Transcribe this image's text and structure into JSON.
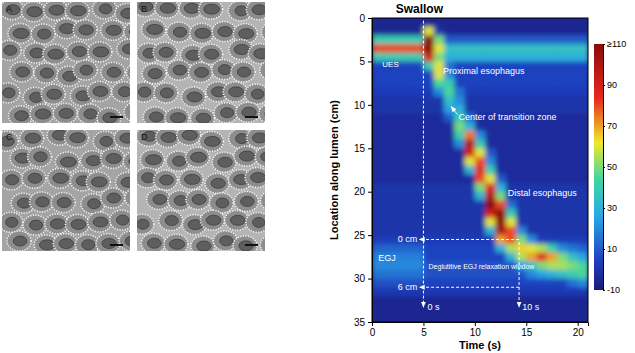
{
  "chart_data": {
    "type": "heatmap",
    "title": "Swallow",
    "x_label": "Time (s)",
    "y_label": "Location along lumen (cm)",
    "xlim": [
      0,
      21
    ],
    "xticks": [
      0,
      5,
      10,
      15,
      20
    ],
    "ylim": [
      0,
      35
    ],
    "yticks": [
      0,
      5,
      10,
      15,
      20,
      25,
      30,
      35
    ],
    "x_bins": [
      0,
      1,
      2,
      3,
      4,
      5,
      6,
      7,
      8,
      9,
      10,
      11,
      12,
      13,
      14,
      15,
      16,
      17,
      18,
      19,
      20,
      21
    ],
    "y_bins": [
      0,
      1,
      2,
      3,
      4,
      5,
      6,
      7,
      8,
      9,
      10,
      11,
      12,
      13,
      14,
      15,
      16,
      17,
      18,
      19,
      20,
      21,
      22,
      23,
      24,
      25,
      26,
      27,
      28,
      29,
      30,
      31,
      32,
      33,
      34,
      35
    ],
    "cells": [
      [
        -5,
        -5,
        -5,
        -5,
        -5,
        -5,
        -5,
        -5,
        -5,
        -5,
        -5,
        -5,
        -5,
        -5,
        -5,
        -5,
        -5,
        -5,
        -5,
        -5,
        -5
      ],
      [
        -5,
        -5,
        -5,
        -5,
        -5,
        60,
        0,
        -5,
        -5,
        -5,
        -5,
        -5,
        -5,
        -5,
        -5,
        -5,
        -5,
        -5,
        -5,
        -5,
        -5
      ],
      [
        40,
        40,
        40,
        40,
        40,
        120,
        50,
        10,
        10,
        10,
        10,
        10,
        10,
        10,
        10,
        10,
        10,
        10,
        10,
        10,
        10
      ],
      [
        80,
        80,
        80,
        80,
        80,
        120,
        60,
        35,
        35,
        35,
        35,
        35,
        35,
        35,
        35,
        35,
        35,
        35,
        35,
        35,
        35
      ],
      [
        40,
        40,
        40,
        40,
        40,
        90,
        50,
        30,
        30,
        30,
        30,
        30,
        30,
        30,
        30,
        30,
        30,
        30,
        30,
        30,
        30
      ],
      [
        5,
        5,
        5,
        5,
        5,
        40,
        60,
        15,
        5,
        5,
        5,
        5,
        5,
        5,
        5,
        5,
        5,
        5,
        5,
        5,
        5
      ],
      [
        5,
        5,
        5,
        5,
        5,
        5,
        60,
        20,
        5,
        5,
        5,
        5,
        5,
        5,
        5,
        5,
        5,
        5,
        5,
        5,
        5
      ],
      [
        5,
        5,
        5,
        5,
        5,
        5,
        45,
        40,
        5,
        5,
        5,
        5,
        5,
        5,
        5,
        5,
        5,
        5,
        5,
        5,
        5
      ],
      [
        3,
        3,
        3,
        3,
        3,
        3,
        20,
        45,
        15,
        3,
        3,
        3,
        3,
        3,
        3,
        3,
        3,
        3,
        3,
        3,
        3
      ],
      [
        0,
        0,
        0,
        0,
        0,
        0,
        0,
        35,
        20,
        0,
        0,
        0,
        0,
        0,
        0,
        0,
        0,
        0,
        0,
        0,
        0
      ],
      [
        0,
        0,
        0,
        0,
        0,
        0,
        0,
        25,
        30,
        0,
        0,
        0,
        0,
        0,
        0,
        0,
        0,
        0,
        0,
        0,
        0
      ],
      [
        -3,
        -3,
        -3,
        -3,
        -3,
        -3,
        -3,
        10,
        40,
        15,
        -3,
        -3,
        -3,
        -3,
        -3,
        -3,
        -3,
        -3,
        -3,
        -3,
        -3
      ],
      [
        -3,
        -3,
        -3,
        -3,
        -3,
        -3,
        -3,
        -3,
        50,
        30,
        -3,
        -3,
        -3,
        -3,
        -3,
        -3,
        -3,
        -3,
        -3,
        -3,
        -3
      ],
      [
        -3,
        -3,
        -3,
        -3,
        -3,
        -3,
        -3,
        -3,
        40,
        75,
        20,
        -3,
        -3,
        -3,
        -3,
        -3,
        -3,
        -3,
        -3,
        -3,
        -3
      ],
      [
        -3,
        -3,
        -3,
        -3,
        -3,
        -3,
        -3,
        -3,
        20,
        100,
        40,
        -3,
        -3,
        -3,
        -3,
        -3,
        -3,
        -3,
        -3,
        -3,
        -3
      ],
      [
        -3,
        -3,
        -3,
        -3,
        -3,
        -3,
        -3,
        -3,
        -3,
        90,
        60,
        10,
        -3,
        -3,
        -3,
        -3,
        -3,
        -3,
        -3,
        -3,
        -3
      ],
      [
        -3,
        -3,
        -3,
        -3,
        -3,
        -3,
        -3,
        -3,
        -3,
        60,
        80,
        20,
        -3,
        -3,
        -3,
        -3,
        -3,
        -3,
        -3,
        -3,
        -3
      ],
      [
        -3,
        -3,
        -3,
        -3,
        -3,
        -3,
        -3,
        -3,
        -3,
        30,
        85,
        40,
        -3,
        -3,
        -3,
        -3,
        -3,
        -3,
        -3,
        -3,
        -3
      ],
      [
        -3,
        -3,
        -3,
        -3,
        -3,
        -3,
        -3,
        -3,
        -3,
        -3,
        80,
        60,
        10,
        -3,
        -3,
        -3,
        -3,
        -3,
        -3,
        -3,
        -3
      ],
      [
        0,
        0,
        0,
        0,
        0,
        0,
        0,
        0,
        0,
        0,
        50,
        85,
        30,
        0,
        0,
        0,
        0,
        0,
        0,
        0,
        0
      ],
      [
        0,
        0,
        0,
        0,
        0,
        0,
        0,
        0,
        0,
        0,
        30,
        100,
        50,
        0,
        0,
        0,
        0,
        0,
        0,
        0,
        0
      ],
      [
        0,
        0,
        0,
        0,
        0,
        0,
        0,
        0,
        0,
        0,
        0,
        110,
        80,
        15,
        0,
        0,
        0,
        0,
        0,
        0,
        0
      ],
      [
        0,
        0,
        0,
        0,
        0,
        0,
        0,
        0,
        0,
        0,
        0,
        90,
        115,
        40,
        0,
        0,
        0,
        0,
        0,
        0,
        0
      ],
      [
        0,
        0,
        0,
        0,
        0,
        0,
        0,
        0,
        0,
        0,
        0,
        60,
        115,
        60,
        0,
        0,
        0,
        0,
        0,
        0,
        0
      ],
      [
        0,
        0,
        0,
        0,
        0,
        0,
        0,
        0,
        0,
        0,
        0,
        30,
        100,
        80,
        20,
        0,
        0,
        0,
        0,
        0,
        0
      ],
      [
        3,
        3,
        3,
        3,
        3,
        3,
        3,
        3,
        3,
        3,
        3,
        3,
        70,
        80,
        50,
        20,
        3,
        3,
        3,
        3,
        3
      ],
      [
        12,
        12,
        12,
        12,
        12,
        5,
        5,
        5,
        5,
        5,
        5,
        5,
        30,
        55,
        65,
        60,
        55,
        40,
        20,
        15,
        12
      ],
      [
        18,
        18,
        18,
        18,
        18,
        5,
        5,
        5,
        5,
        5,
        5,
        5,
        5,
        30,
        55,
        70,
        85,
        70,
        50,
        35,
        25
      ],
      [
        20,
        20,
        20,
        20,
        20,
        8,
        8,
        8,
        8,
        8,
        8,
        8,
        8,
        8,
        25,
        35,
        50,
        55,
        55,
        50,
        45
      ],
      [
        15,
        15,
        15,
        15,
        15,
        8,
        8,
        8,
        8,
        8,
        8,
        8,
        8,
        8,
        8,
        20,
        25,
        30,
        35,
        40,
        45
      ],
      [
        8,
        8,
        8,
        8,
        8,
        5,
        5,
        5,
        5,
        5,
        5,
        5,
        5,
        5,
        5,
        5,
        5,
        5,
        5,
        15,
        20
      ],
      [
        2,
        2,
        2,
        2,
        2,
        2,
        2,
        2,
        2,
        2,
        2,
        2,
        2,
        2,
        2,
        2,
        2,
        2,
        2,
        2,
        2
      ],
      [
        -5,
        -5,
        -5,
        -5,
        -5,
        -5,
        -5,
        -5,
        -5,
        -5,
        -5,
        -5,
        -5,
        -5,
        -5,
        -5,
        -5,
        -5,
        -5,
        -5,
        -5
      ],
      [
        -5,
        -5,
        -5,
        -5,
        -5,
        -5,
        -5,
        -5,
        -5,
        -5,
        -5,
        -5,
        -5,
        -5,
        -5,
        -5,
        -5,
        -5,
        -5,
        -5,
        -5
      ],
      [
        -5,
        -5,
        -5,
        -5,
        -5,
        -5,
        -5,
        -5,
        -5,
        -5,
        -5,
        -5,
        -5,
        -5,
        -5,
        -5,
        -5,
        -5,
        -5,
        -5,
        -5
      ]
    ],
    "colorbar": {
      "range": [
        -10,
        110
      ],
      "ticks": [
        -10,
        10,
        30,
        50,
        70,
        90,
        {
          "value": 110,
          "label": "≥110"
        }
      ]
    },
    "annotations": [
      "UES",
      "Proximal esophagus",
      "Center of transition zone",
      "Distal esophagus",
      "EGJ",
      "0 cm",
      "6 cm",
      "0 s",
      "10 s",
      "Deglutitive EGJ relaxation window"
    ]
  },
  "micrographs": {
    "panels": [
      "A",
      "B",
      "C",
      "D"
    ]
  }
}
